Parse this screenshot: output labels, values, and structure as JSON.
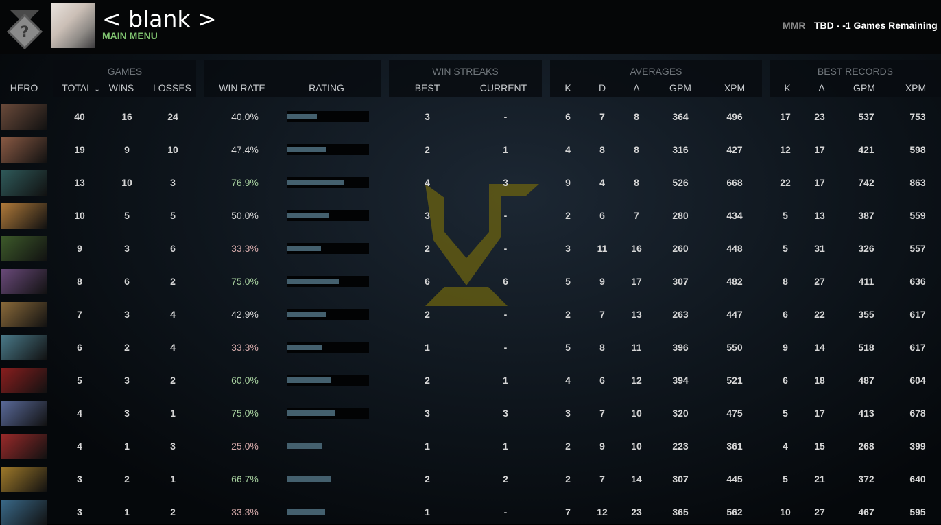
{
  "header": {
    "player_name": "< blank >",
    "status": "MAIN MENU",
    "mmr_label": "MMR",
    "mmr_value": "TBD - -1 Games Remaining",
    "rank_icon": "unknown-rank-medal-icon"
  },
  "table": {
    "groups": {
      "games": "GAMES",
      "win_streaks": "WIN STREAKS",
      "averages": "AVERAGES",
      "best_records": "BEST RECORDS"
    },
    "columns": {
      "hero": "HERO",
      "total": "TOTAL",
      "wins": "WINS",
      "losses": "LOSSES",
      "win_rate": "WIN RATE",
      "rating": "RATING",
      "best": "BEST",
      "current": "CURRENT",
      "avg_k": "K",
      "avg_d": "D",
      "avg_a": "A",
      "avg_gpm": "GPM",
      "avg_xpm": "XPM",
      "best_k": "K",
      "best_a": "A",
      "best_gpm": "GPM",
      "best_xpm": "XPM"
    },
    "sort_indicator": "chevron-down-icon",
    "colors": {
      "good": "#a6cf9e",
      "bad": "#d4a9a9",
      "neutral": "#d6d6d6",
      "rating_fill": "#44606e",
      "status": "#7fc26f"
    },
    "rows": [
      {
        "portrait_color": "#6a4a3a",
        "total": "40",
        "wins": "16",
        "losses": "24",
        "win_rate": "40.0%",
        "tone": "neutral",
        "rating": 0.36,
        "best": "3",
        "current": "-",
        "k": "6",
        "d": "7",
        "a": "8",
        "gpm": "364",
        "xpm": "496",
        "bk": "17",
        "ba": "23",
        "bgpm": "537",
        "bxpm": "753"
      },
      {
        "portrait_color": "#8a5a44",
        "total": "19",
        "wins": "9",
        "losses": "10",
        "win_rate": "47.4%",
        "tone": "neutral",
        "rating": 0.48,
        "best": "2",
        "current": "1",
        "k": "4",
        "d": "8",
        "a": "8",
        "gpm": "316",
        "xpm": "427",
        "bk": "12",
        "ba": "17",
        "bgpm": "421",
        "bxpm": "598"
      },
      {
        "portrait_color": "#2f5a5a",
        "total": "13",
        "wins": "10",
        "losses": "3",
        "win_rate": "76.9%",
        "tone": "good",
        "rating": 0.7,
        "best": "4",
        "current": "3",
        "k": "9",
        "d": "4",
        "a": "8",
        "gpm": "526",
        "xpm": "668",
        "bk": "22",
        "ba": "17",
        "bgpm": "742",
        "bxpm": "863"
      },
      {
        "portrait_color": "#b07a3a",
        "total": "10",
        "wins": "5",
        "losses": "5",
        "win_rate": "50.0%",
        "tone": "neutral",
        "rating": 0.5,
        "best": "3",
        "current": "-",
        "k": "2",
        "d": "6",
        "a": "7",
        "gpm": "280",
        "xpm": "434",
        "bk": "5",
        "ba": "13",
        "bgpm": "387",
        "bxpm": "559"
      },
      {
        "portrait_color": "#3d5a2a",
        "total": "9",
        "wins": "3",
        "losses": "6",
        "win_rate": "33.3%",
        "tone": "bad",
        "rating": 0.41,
        "best": "2",
        "current": "-",
        "k": "3",
        "d": "11",
        "a": "16",
        "gpm": "260",
        "xpm": "448",
        "bk": "5",
        "ba": "31",
        "bgpm": "326",
        "bxpm": "557"
      },
      {
        "portrait_color": "#6a4a7a",
        "total": "8",
        "wins": "6",
        "losses": "2",
        "win_rate": "75.0%",
        "tone": "good",
        "rating": 0.63,
        "best": "6",
        "current": "6",
        "k": "5",
        "d": "9",
        "a": "17",
        "gpm": "307",
        "xpm": "482",
        "bk": "8",
        "ba": "27",
        "bgpm": "411",
        "bxpm": "636"
      },
      {
        "portrait_color": "#8a6a3a",
        "total": "7",
        "wins": "3",
        "losses": "4",
        "win_rate": "42.9%",
        "tone": "neutral",
        "rating": 0.47,
        "best": "2",
        "current": "-",
        "k": "2",
        "d": "7",
        "a": "13",
        "gpm": "263",
        "xpm": "447",
        "bk": "6",
        "ba": "22",
        "bgpm": "355",
        "bxpm": "617"
      },
      {
        "portrait_color": "#4a7a8a",
        "total": "6",
        "wins": "2",
        "losses": "4",
        "win_rate": "33.3%",
        "tone": "bad",
        "rating": 0.43,
        "best": "1",
        "current": "-",
        "k": "5",
        "d": "8",
        "a": "11",
        "gpm": "396",
        "xpm": "550",
        "bk": "9",
        "ba": "14",
        "bgpm": "518",
        "bxpm": "617"
      },
      {
        "portrait_color": "#8a1e1e",
        "total": "5",
        "wins": "3",
        "losses": "2",
        "win_rate": "60.0%",
        "tone": "good",
        "rating": 0.53,
        "best": "2",
        "current": "1",
        "k": "4",
        "d": "6",
        "a": "12",
        "gpm": "394",
        "xpm": "521",
        "bk": "6",
        "ba": "18",
        "bgpm": "487",
        "bxpm": "604"
      },
      {
        "portrait_color": "#5a6a9a",
        "total": "4",
        "wins": "3",
        "losses": "1",
        "win_rate": "75.0%",
        "tone": "good",
        "rating": 0.58,
        "best": "3",
        "current": "3",
        "k": "3",
        "d": "7",
        "a": "10",
        "gpm": "320",
        "xpm": "475",
        "bk": "5",
        "ba": "17",
        "bgpm": "413",
        "bxpm": "678"
      },
      {
        "portrait_color": "#9a2a2a",
        "total": "4",
        "wins": "1",
        "losses": "3",
        "win_rate": "25.0%",
        "tone": "bad",
        "rating": 0.43,
        "best": "1",
        "current": "1",
        "k": "2",
        "d": "9",
        "a": "10",
        "gpm": "223",
        "xpm": "361",
        "bk": "4",
        "ba": "15",
        "bgpm": "268",
        "bxpm": "399"
      },
      {
        "portrait_color": "#a07a2a",
        "total": "3",
        "wins": "2",
        "losses": "1",
        "win_rate": "66.7%",
        "tone": "good",
        "rating": 0.54,
        "best": "2",
        "current": "2",
        "k": "2",
        "d": "7",
        "a": "14",
        "gpm": "307",
        "xpm": "445",
        "bk": "5",
        "ba": "21",
        "bgpm": "372",
        "bxpm": "640"
      },
      {
        "portrait_color": "#3a6a8a",
        "total": "3",
        "wins": "1",
        "losses": "2",
        "win_rate": "33.3%",
        "tone": "bad",
        "rating": 0.46,
        "best": "1",
        "current": "-",
        "k": "7",
        "d": "12",
        "a": "23",
        "gpm": "365",
        "xpm": "562",
        "bk": "10",
        "ba": "27",
        "bgpm": "467",
        "bxpm": "595"
      }
    ]
  }
}
